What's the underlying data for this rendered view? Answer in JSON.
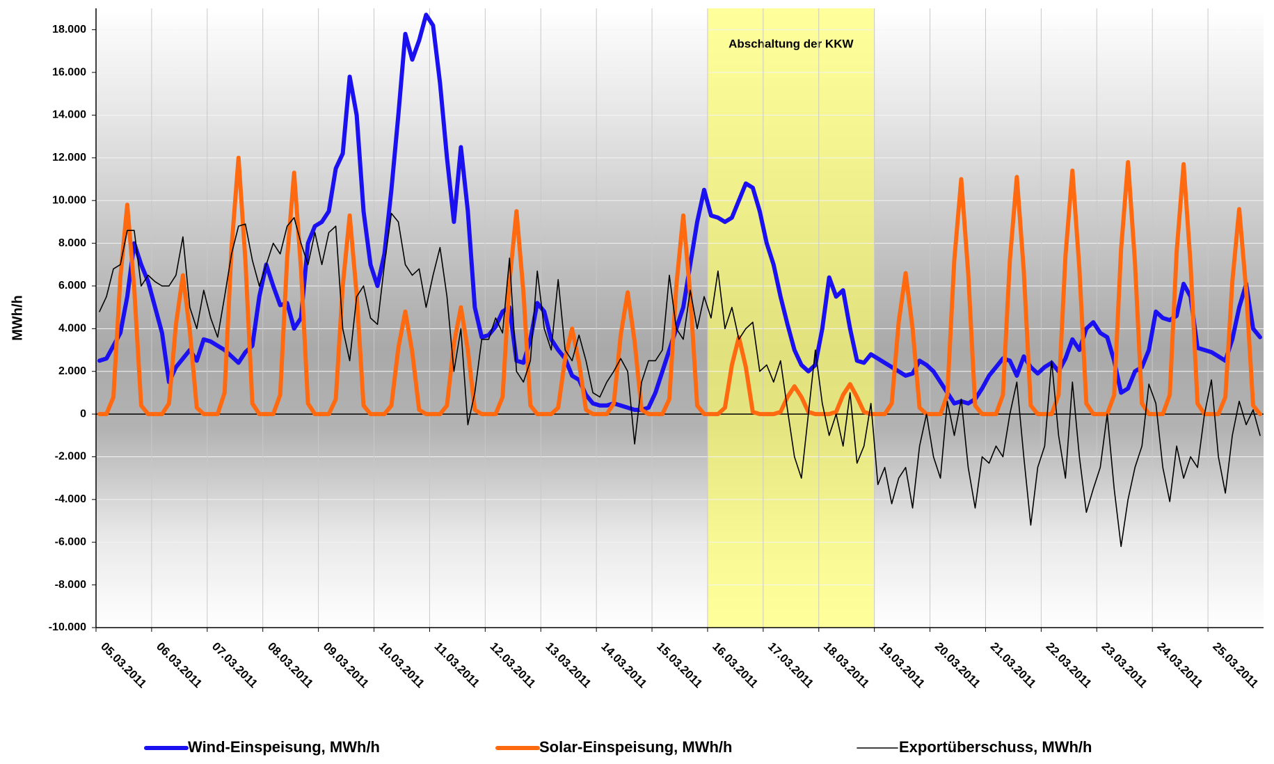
{
  "chart_data": {
    "type": "line",
    "y_label": "MWh/h",
    "categories": [
      "05.03.2011",
      null,
      null,
      null,
      null,
      null,
      null,
      null,
      "06.03.2011",
      null,
      null,
      null,
      null,
      null,
      null,
      null,
      "07.03.2011",
      null,
      null,
      null,
      null,
      null,
      null,
      null,
      "08.03.2011",
      null,
      null,
      null,
      null,
      null,
      null,
      null,
      "09.03.2011",
      null,
      null,
      null,
      null,
      null,
      null,
      null,
      "10.03.2011",
      null,
      null,
      null,
      null,
      null,
      null,
      null,
      "11.03.2011",
      null,
      null,
      null,
      null,
      null,
      null,
      null,
      "12.03.2011",
      null,
      null,
      null,
      null,
      null,
      null,
      null,
      "13.03.2011",
      null,
      null,
      null,
      null,
      null,
      null,
      null,
      "14.03.2011",
      null,
      null,
      null,
      null,
      null,
      null,
      null,
      "15.03.2011",
      null,
      null,
      null,
      null,
      null,
      null,
      null,
      "16.03.2011",
      null,
      null,
      null,
      null,
      null,
      null,
      null,
      "17.03.2011",
      null,
      null,
      null,
      null,
      null,
      null,
      null,
      "18.03.2011",
      null,
      null,
      null,
      null,
      null,
      null,
      null,
      "19.03.2011",
      null,
      null,
      null,
      null,
      null,
      null,
      null,
      "20.03.2011",
      null,
      null,
      null,
      null,
      null,
      null,
      null,
      "21.03.2011",
      null,
      null,
      null,
      null,
      null,
      null,
      null,
      "22.03.2011",
      null,
      null,
      null,
      null,
      null,
      null,
      null,
      "23.03.2011",
      null,
      null,
      null,
      null,
      null,
      null,
      null,
      "24.03.2011",
      null,
      null,
      null,
      null,
      null,
      null,
      null,
      "25.03.2011",
      null,
      null,
      null,
      null,
      null,
      null,
      null
    ],
    "series": [
      {
        "name": "Wind-Einspeisung, MWh/h",
        "color": "#1a10f0",
        "width": 6,
        "values": [
          2500,
          2600,
          3200,
          3800,
          5500,
          8000,
          7000,
          6200,
          5000,
          3800,
          1500,
          2200,
          2600,
          3000,
          2500,
          3500,
          3400,
          3200,
          3000,
          2700,
          2400,
          2900,
          3200,
          5500,
          7000,
          6000,
          5100,
          5200,
          4000,
          4500,
          8000,
          8800,
          9000,
          9500,
          11500,
          12200,
          15800,
          14000,
          9500,
          7000,
          6000,
          7500,
          10500,
          14000,
          17800,
          16600,
          17500,
          18700,
          18200,
          15500,
          12000,
          9000,
          12500,
          9500,
          5000,
          3600,
          3700,
          4100,
          4800,
          5000,
          2500,
          2400,
          3500,
          5200,
          4800,
          3500,
          3000,
          2600,
          1800,
          1600,
          900,
          500,
          400,
          400,
          500,
          400,
          300,
          200,
          200,
          300,
          1000,
          2000,
          3000,
          4000,
          5000,
          7000,
          9000,
          10500,
          9300,
          9200,
          9000,
          9200,
          10000,
          10800,
          10600,
          9500,
          8000,
          7000,
          5500,
          4200,
          3000,
          2300,
          2000,
          2300,
          4000,
          6400,
          5500,
          5800,
          4000,
          2500,
          2400,
          2800,
          2600,
          2400,
          2200,
          2000,
          1800,
          1900,
          2500,
          2300,
          2000,
          1500,
          1000,
          500,
          600,
          500,
          700,
          1200,
          1800,
          2200,
          2600,
          2500,
          1800,
          2700,
          2200,
          1900,
          2200,
          2400,
          2000,
          2600,
          3500,
          3000,
          4000,
          4300,
          3800,
          3600,
          2500,
          1000,
          1200,
          2000,
          2200,
          3000,
          4800,
          4500,
          4400,
          4600,
          6100,
          5500,
          3100,
          3000,
          2900,
          2700,
          2500,
          3500,
          5000,
          6100,
          4000,
          3600
        ]
      },
      {
        "name": "Solar-Einspeisung, MWh/h",
        "color": "#ff6a10",
        "width": 6,
        "values": [
          0,
          0,
          800,
          6400,
          9800,
          5900,
          400,
          0,
          0,
          0,
          500,
          4200,
          6500,
          3900,
          300,
          0,
          0,
          0,
          1000,
          7800,
          12000,
          7200,
          500,
          0,
          0,
          0,
          900,
          7300,
          11300,
          6800,
          500,
          0,
          0,
          0,
          700,
          6000,
          9300,
          5600,
          400,
          0,
          0,
          0,
          400,
          3100,
          4800,
          2900,
          200,
          0,
          0,
          0,
          400,
          3300,
          5000,
          3000,
          200,
          0,
          0,
          0,
          800,
          6200,
          9500,
          5700,
          400,
          0,
          0,
          0,
          300,
          2600,
          4000,
          2400,
          200,
          0,
          0,
          0,
          500,
          3700,
          5700,
          3400,
          200,
          0,
          0,
          0,
          700,
          6000,
          9300,
          5600,
          400,
          0,
          0,
          0,
          300,
          2300,
          3600,
          2200,
          100,
          0,
          0,
          0,
          100,
          800,
          1300,
          800,
          100,
          0,
          0,
          0,
          100,
          900,
          1400,
          800,
          100,
          0,
          0,
          0,
          500,
          4300,
          6600,
          4000,
          300,
          0,
          0,
          0,
          900,
          7200,
          11000,
          6600,
          400,
          0,
          0,
          0,
          900,
          7200,
          11100,
          6700,
          400,
          0,
          0,
          0,
          900,
          7400,
          11400,
          6800,
          500,
          0,
          0,
          0,
          900,
          7700,
          11800,
          7100,
          500,
          0,
          0,
          0,
          900,
          7600,
          11700,
          7000,
          500,
          0,
          0,
          0,
          800,
          6200,
          9600,
          5800,
          400,
          0
        ]
      },
      {
        "name": "Exportüberschuss, MWh/h",
        "color": "#000000",
        "width": 1.6,
        "values": [
          4800,
          5500,
          6800,
          7000,
          8600,
          8600,
          6000,
          6500,
          6200,
          6000,
          6000,
          6500,
          8300,
          5000,
          4000,
          5800,
          4500,
          3600,
          5500,
          7500,
          8800,
          8900,
          7200,
          6000,
          7000,
          8000,
          7500,
          8800,
          9200,
          8000,
          7000,
          8500,
          7000,
          8500,
          8800,
          4000,
          2500,
          5500,
          6000,
          4500,
          4200,
          7000,
          9400,
          9000,
          7000,
          6500,
          6800,
          5000,
          6500,
          7800,
          5500,
          2000,
          4000,
          -500,
          1000,
          3500,
          3500,
          4500,
          3800,
          7300,
          2000,
          1500,
          2500,
          6700,
          4000,
          3000,
          6300,
          3000,
          2500,
          3700,
          2500,
          1000,
          800,
          1500,
          2000,
          2600,
          2000,
          -1400,
          1500,
          2500,
          2500,
          3000,
          6500,
          4000,
          3500,
          5800,
          4000,
          5500,
          4500,
          6700,
          4000,
          5000,
          3500,
          4000,
          4300,
          2000,
          2300,
          1500,
          2500,
          200,
          -2000,
          -3000,
          0,
          3000,
          500,
          -1000,
          0,
          -1500,
          1000,
          -2300,
          -1500,
          500,
          -3300,
          -2500,
          -4200,
          -3000,
          -2500,
          -4400,
          -1500,
          0,
          -2000,
          -3000,
          600,
          -1000,
          700,
          -2500,
          -4400,
          -2000,
          -2300,
          -1500,
          -2000,
          0,
          1500,
          -2000,
          -5200,
          -2500,
          -1500,
          2500,
          -1000,
          -3000,
          1500,
          -2000,
          -4600,
          -3500,
          -2500,
          0,
          -3500,
          -6200,
          -4000,
          -2500,
          -1500,
          1400,
          500,
          -2500,
          -4100,
          -1500,
          -3000,
          -2000,
          -2500,
          0,
          1600,
          -2000,
          -3700,
          -1000,
          600,
          -500,
          200,
          -1000
        ]
      }
    ],
    "ylim": [
      -10000,
      19000
    ],
    "yticks": [
      {
        "value": -10000,
        "label": "-10.000"
      },
      {
        "value": -8000,
        "label": "-8.000"
      },
      {
        "value": -6000,
        "label": "-6.000"
      },
      {
        "value": -4000,
        "label": "-4.000"
      },
      {
        "value": -2000,
        "label": "-2.000"
      },
      0,
      {
        "value": 2000,
        "label": "2.000"
      },
      {
        "value": 4000,
        "label": "4.000"
      },
      {
        "value": 6000,
        "label": "6.000"
      },
      {
        "value": 8000,
        "label": "8.000"
      },
      {
        "value": 10000,
        "label": "10.000"
      },
      {
        "value": 12000,
        "label": "12.000"
      },
      {
        "value": 14000,
        "label": "14.000"
      },
      {
        "value": 16000,
        "label": "16.000"
      },
      {
        "value": 18000,
        "label": "18.000"
      }
    ],
    "grid": true,
    "highlight": {
      "label": "Abschaltung der KKW",
      "start": "16.03.2011",
      "end": "19.03.2011",
      "color": "#ffff66"
    },
    "legend": "bottom"
  }
}
